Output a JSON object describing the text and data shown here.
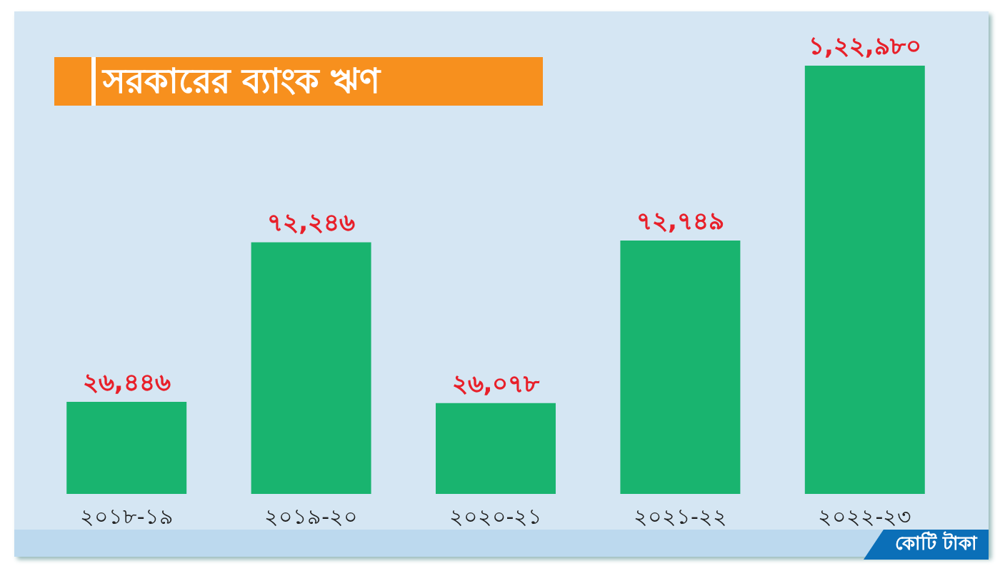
{
  "chart_data": {
    "type": "bar",
    "title": "সরকারের ব্যাংক ঋণ",
    "categories": [
      "২০১৮-১৯",
      "২০১৯-২০",
      "২০২০-২১",
      "২০২১-২২",
      "২০২২-২৩"
    ],
    "values": [
      26446,
      72246,
      26078,
      72749,
      122980
    ],
    "value_labels": [
      "২৬,৪৪৬",
      "৭২,২৪৬",
      "২৬,০৭৮",
      "৭২,৭৪৯",
      "১,২২,৯৮০"
    ],
    "color": "#19b46f",
    "annotations": [
      "কোটি টাকা"
    ],
    "grid": false,
    "legend": false
  }
}
